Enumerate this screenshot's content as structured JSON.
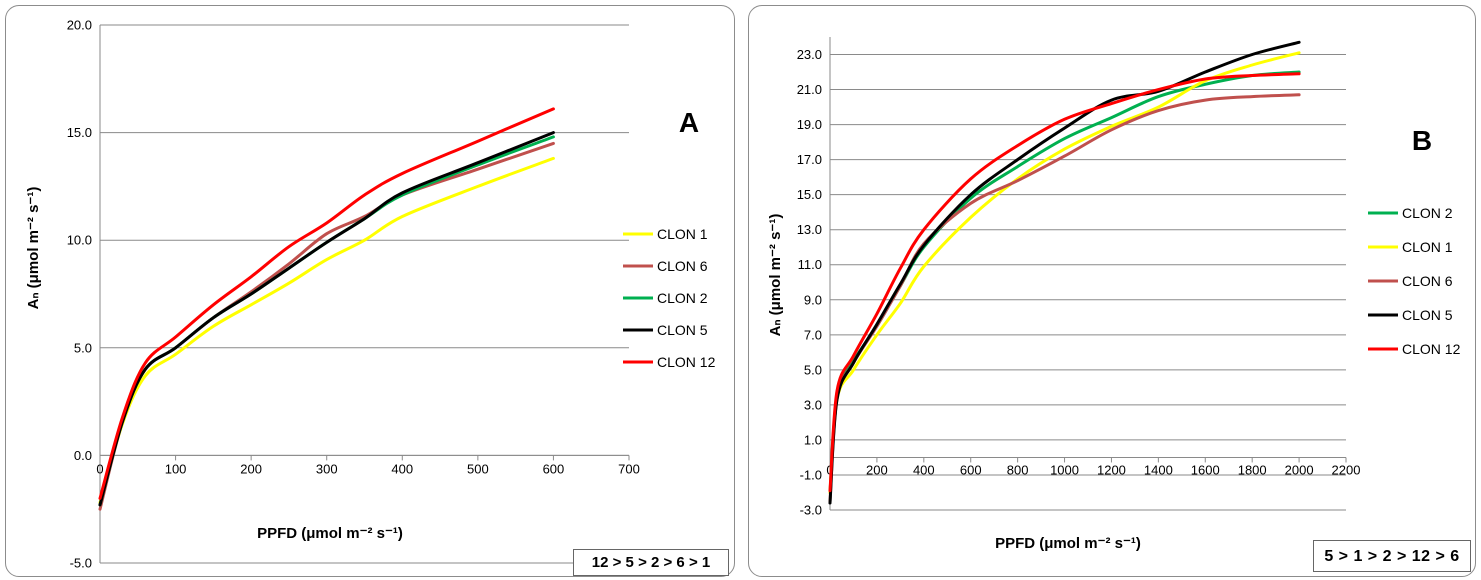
{
  "chart_data": [
    {
      "type": "line",
      "letter": "A",
      "xlabel": "PPFD (μmol m⁻² s⁻¹)",
      "ylabel": "Aₙ (μmol m⁻² s⁻¹)",
      "xlim": [
        0,
        700
      ],
      "ylim": [
        -5,
        20
      ],
      "x_ticks": [
        "0",
        "100",
        "200",
        "300",
        "400",
        "500",
        "600",
        "700"
      ],
      "y_ticks": [
        "-5.0",
        "0.0",
        "5.0",
        "10.0",
        "15.0",
        "20.0"
      ],
      "grid": "horizontal",
      "legend_position": "right",
      "ranking": "12 > 5 > 2 > 6 > 1",
      "series": [
        {
          "name": "CLON 1",
          "color": "#ffff00",
          "points": [
            [
              0,
              -2.2
            ],
            [
              30,
              1.5
            ],
            [
              60,
              3.7
            ],
            [
              100,
              4.7
            ],
            [
              150,
              6.0
            ],
            [
              200,
              7.0
            ],
            [
              250,
              8.0
            ],
            [
              300,
              9.1
            ],
            [
              350,
              10.0
            ],
            [
              400,
              11.1
            ],
            [
              500,
              12.5
            ],
            [
              600,
              13.8
            ]
          ]
        },
        {
          "name": "CLON 6",
          "color": "#c0504d",
          "points": [
            [
              0,
              -2.5
            ],
            [
              30,
              1.6
            ],
            [
              60,
              4.0
            ],
            [
              100,
              5.0
            ],
            [
              150,
              6.4
            ],
            [
              200,
              7.6
            ],
            [
              250,
              8.9
            ],
            [
              300,
              10.3
            ],
            [
              350,
              11.1
            ],
            [
              400,
              12.1
            ],
            [
              500,
              13.3
            ],
            [
              600,
              14.5
            ]
          ]
        },
        {
          "name": "CLON 2",
          "color": "#00b050",
          "points": [
            [
              0,
              -2.3
            ],
            [
              30,
              1.6
            ],
            [
              60,
              4.0
            ],
            [
              100,
              5.0
            ],
            [
              150,
              6.4
            ],
            [
              200,
              7.5
            ],
            [
              250,
              8.7
            ],
            [
              300,
              9.9
            ],
            [
              350,
              11.0
            ],
            [
              400,
              12.1
            ],
            [
              500,
              13.5
            ],
            [
              600,
              14.8
            ]
          ]
        },
        {
          "name": "CLON 5",
          "color": "#000000",
          "points": [
            [
              0,
              -2.3
            ],
            [
              30,
              1.6
            ],
            [
              60,
              4.0
            ],
            [
              100,
              5.0
            ],
            [
              150,
              6.4
            ],
            [
              200,
              7.5
            ],
            [
              250,
              8.7
            ],
            [
              300,
              9.9
            ],
            [
              350,
              11.0
            ],
            [
              400,
              12.2
            ],
            [
              500,
              13.6
            ],
            [
              600,
              15.0
            ]
          ]
        },
        {
          "name": "CLON 12",
          "color": "#ff0000",
          "points": [
            [
              0,
              -2.0
            ],
            [
              30,
              1.8
            ],
            [
              60,
              4.3
            ],
            [
              100,
              5.5
            ],
            [
              150,
              7.0
            ],
            [
              200,
              8.3
            ],
            [
              250,
              9.7
            ],
            [
              300,
              10.8
            ],
            [
              350,
              12.1
            ],
            [
              400,
              13.1
            ],
            [
              500,
              14.6
            ],
            [
              600,
              16.1
            ]
          ]
        }
      ]
    },
    {
      "type": "line",
      "letter": "B",
      "xlabel": "PPFD (μmol m⁻² s⁻¹)",
      "ylabel": "Aₙ (μmol m⁻² s⁻¹)",
      "xlim": [
        0,
        2200
      ],
      "ylim": [
        -3,
        24
      ],
      "x_ticks": [
        "0",
        "200",
        "400",
        "600",
        "800",
        "1000",
        "1200",
        "1400",
        "1600",
        "1800",
        "2000",
        "2200"
      ],
      "y_ticks": [
        "-3.0",
        "-1.0",
        "1.0",
        "3.0",
        "5.0",
        "7.0",
        "9.0",
        "11.0",
        "13.0",
        "15.0",
        "17.0",
        "19.0",
        "21.0",
        "23.0"
      ],
      "grid": "horizontal",
      "legend_position": "right",
      "ranking": "5 > 1 > 2 > 12 > 6",
      "series": [
        {
          "name": "CLON 2",
          "color": "#00b050",
          "points": [
            [
              0,
              -2.0
            ],
            [
              30,
              3.5
            ],
            [
              100,
              5.5
            ],
            [
              200,
              7.5
            ],
            [
              300,
              9.8
            ],
            [
              400,
              12.0
            ],
            [
              600,
              14.8
            ],
            [
              800,
              16.6
            ],
            [
              1000,
              18.2
            ],
            [
              1200,
              19.4
            ],
            [
              1400,
              20.6
            ],
            [
              1600,
              21.3
            ],
            [
              1800,
              21.8
            ],
            [
              2000,
              22.0
            ]
          ]
        },
        {
          "name": "CLON 1",
          "color": "#ffff00",
          "points": [
            [
              0,
              -2.0
            ],
            [
              30,
              3.3
            ],
            [
              100,
              5.0
            ],
            [
              200,
              7.0
            ],
            [
              300,
              8.8
            ],
            [
              400,
              10.9
            ],
            [
              600,
              13.7
            ],
            [
              800,
              15.9
            ],
            [
              1000,
              17.6
            ],
            [
              1200,
              18.9
            ],
            [
              1400,
              20.0
            ],
            [
              1600,
              21.5
            ],
            [
              1800,
              22.4
            ],
            [
              2000,
              23.1
            ]
          ]
        },
        {
          "name": "CLON 6",
          "color": "#c0504d",
          "points": [
            [
              0,
              -2.5
            ],
            [
              30,
              3.4
            ],
            [
              100,
              5.4
            ],
            [
              200,
              7.5
            ],
            [
              300,
              9.8
            ],
            [
              400,
              12.2
            ],
            [
              600,
              14.5
            ],
            [
              800,
              15.8
            ],
            [
              1000,
              17.2
            ],
            [
              1200,
              18.7
            ],
            [
              1400,
              19.8
            ],
            [
              1600,
              20.4
            ],
            [
              1800,
              20.6
            ],
            [
              2000,
              20.7
            ]
          ]
        },
        {
          "name": "CLON 5",
          "color": "#000000",
          "points": [
            [
              0,
              -2.6
            ],
            [
              30,
              3.3
            ],
            [
              100,
              5.4
            ],
            [
              200,
              7.6
            ],
            [
              300,
              9.9
            ],
            [
              400,
              12.1
            ],
            [
              600,
              15.0
            ],
            [
              800,
              17.0
            ],
            [
              1000,
              18.8
            ],
            [
              1200,
              20.4
            ],
            [
              1400,
              20.9
            ],
            [
              1600,
              22.0
            ],
            [
              1800,
              23.0
            ],
            [
              2000,
              23.7
            ]
          ]
        },
        {
          "name": "CLON 12",
          "color": "#ff0000",
          "points": [
            [
              0,
              -1.9
            ],
            [
              30,
              3.8
            ],
            [
              100,
              5.8
            ],
            [
              200,
              8.2
            ],
            [
              300,
              10.8
            ],
            [
              400,
              13.0
            ],
            [
              600,
              15.9
            ],
            [
              800,
              17.8
            ],
            [
              1000,
              19.3
            ],
            [
              1200,
              20.2
            ],
            [
              1400,
              21.0
            ],
            [
              1600,
              21.6
            ],
            [
              1800,
              21.8
            ],
            [
              2000,
              21.9
            ]
          ]
        }
      ]
    }
  ]
}
